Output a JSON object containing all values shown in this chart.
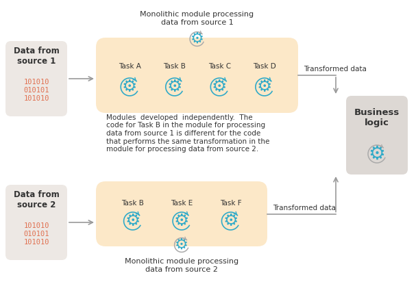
{
  "bg_color": "#ffffff",
  "source_box_color": "#ede8e4",
  "module_box_color": "#fce8c8",
  "business_box_color": "#ddd8d4",
  "arrow_color": "#999999",
  "text_color_dark": "#333333",
  "text_color_red": "#e07050",
  "gear_color": "#30aac8",
  "title1": "Monolithic module processing\ndata from source 1",
  "title2": "Monolithic module processing\ndata from source 2",
  "source1_label": "Data from\nsource 1",
  "source1_data": "101010\n010101\n101010",
  "source2_label": "Data from\nsource 2",
  "source2_data": "101010\n010101\n101010",
  "tasks1": [
    "Task A",
    "Task B",
    "Task C",
    "Task D"
  ],
  "tasks2": [
    "Task B",
    "Task E",
    "Task F"
  ],
  "transformed_data": "Transformed data",
  "business_label": "Business\nlogic",
  "middle_text": "Modules  developed  independently.  The\ncode for Task B in the module for processing\ndata from source 1 is different for the code\nthat performs the same transformation in the\nmodule for processing data from source 2."
}
